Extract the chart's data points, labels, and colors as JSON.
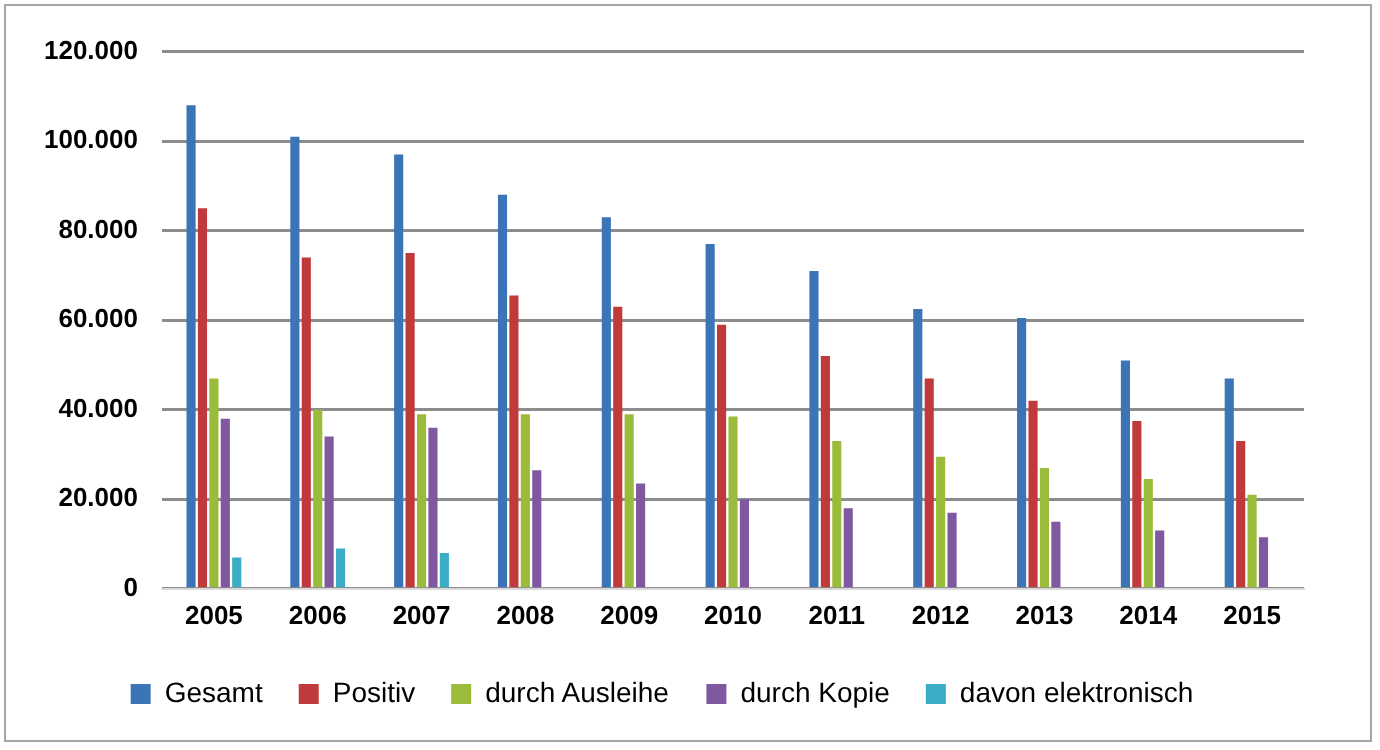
{
  "chart_data": {
    "type": "bar",
    "categories": [
      "2005",
      "2006",
      "2007",
      "2008",
      "2009",
      "2010",
      "2011",
      "2012",
      "2013",
      "2014",
      "2015"
    ],
    "series": [
      {
        "name": "Gesamt",
        "color": "#3b75b8",
        "values": [
          108000,
          101000,
          97000,
          88000,
          83000,
          77000,
          71000,
          62500,
          60500,
          51000,
          47000
        ]
      },
      {
        "name": "Positiv",
        "color": "#c0393b",
        "values": [
          85000,
          74000,
          75000,
          65500,
          63000,
          59000,
          52000,
          47000,
          42000,
          37500,
          33000
        ]
      },
      {
        "name": "durch Ausleihe",
        "color": "#9bbb3a",
        "values": [
          47000,
          40000,
          39000,
          39000,
          39000,
          38500,
          33000,
          29500,
          27000,
          24500,
          21000
        ]
      },
      {
        "name": "durch Kopie",
        "color": "#7f58a0",
        "values": [
          38000,
          34000,
          36000,
          26500,
          23500,
          20000,
          18000,
          17000,
          15000,
          13000,
          11500
        ]
      },
      {
        "name": "davon elektronisch",
        "color": "#3aacc6",
        "values": [
          7000,
          9000,
          8000,
          null,
          null,
          null,
          null,
          null,
          null,
          null,
          null
        ]
      }
    ],
    "ylim": [
      0,
      120000
    ],
    "yticks": [
      0,
      {
        "value": 20000,
        "label": "20.000"
      },
      {
        "value": 40000,
        "label": "40.000"
      },
      {
        "value": 60000,
        "label": "60.000"
      },
      {
        "value": 80000,
        "label": "80.000"
      },
      {
        "value": 100000,
        "label": "100.000"
      },
      {
        "value": 120000,
        "label": "120.000"
      }
    ],
    "grid": "y",
    "legend": "bottom"
  }
}
